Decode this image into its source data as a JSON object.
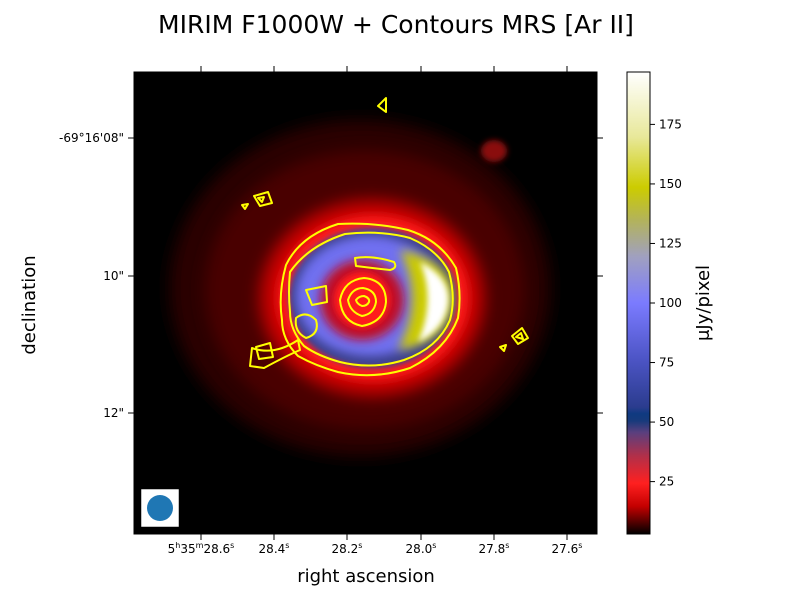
{
  "chart_data": {
    "type": "heatmap",
    "title": "MIRIM F1000W + Contours MRS [Ar II]",
    "xlabel": "right ascension",
    "ylabel": "declination",
    "x_ticks": [
      {
        "h": "5",
        "m": "35",
        "s": "28.6",
        "text": "5h35m28.6s"
      },
      {
        "s": "28.4",
        "text": "28.4s"
      },
      {
        "s": "28.2",
        "text": "28.2s"
      },
      {
        "s": "28.0",
        "text": "28.0s"
      },
      {
        "s": "27.8",
        "text": "27.8s"
      },
      {
        "s": "27.6",
        "text": "27.6s"
      }
    ],
    "y_ticks": [
      "-69°16'08\"",
      "10\"",
      "12\""
    ],
    "colorbar": {
      "label": "μJy/pixel",
      "range": [
        3,
        197
      ],
      "ticks": [
        "25",
        "50",
        "75",
        "100",
        "125",
        "150",
        "175"
      ],
      "tick_values": [
        25,
        50,
        75,
        100,
        125,
        150,
        175
      ]
    },
    "features": {
      "ring_flux_ujy_per_pixel": 25,
      "inner_structure_flux_ujy_per_pixel": 90,
      "crescent_peak_ujy_per_pixel": 195
    },
    "contours": {
      "color": "#ffff00",
      "line": "MRS [Ar II]"
    },
    "beam": {
      "shape": "circle",
      "color": "#1f77b4"
    },
    "colors": {
      "contour": "#ffff00",
      "beam": "#1f77b4",
      "background": "#000000"
    }
  }
}
